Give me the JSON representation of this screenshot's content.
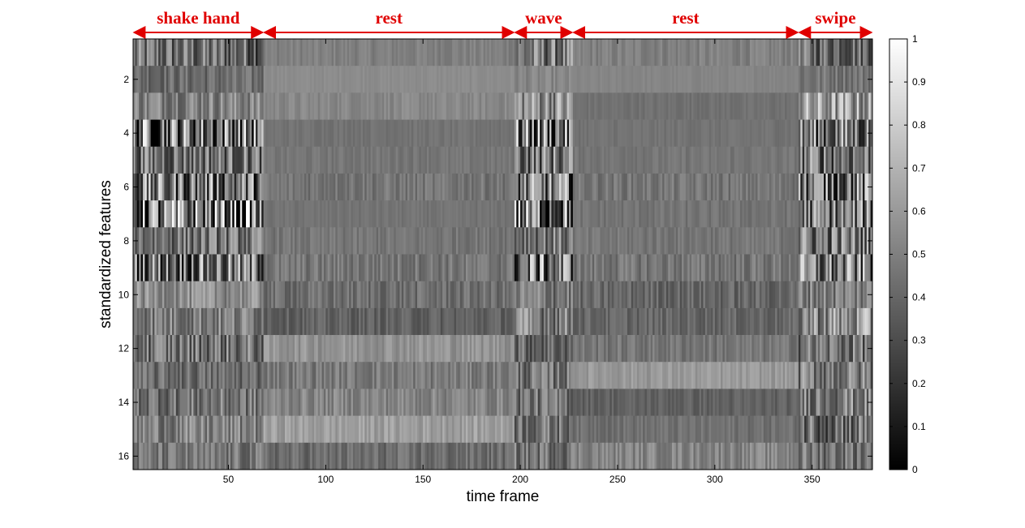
{
  "chart_data": {
    "type": "heatmap",
    "xlabel": "time frame",
    "ylabel": "standardized features",
    "xlim": [
      1,
      381
    ],
    "ylim": [
      0.5,
      16.5
    ],
    "x_ticks": [
      50,
      100,
      150,
      200,
      250,
      300,
      350
    ],
    "y_ticks": [
      2,
      4,
      6,
      8,
      10,
      12,
      14,
      16
    ],
    "colormap": "gray",
    "colorbar": {
      "min": 0,
      "max": 1,
      "ticks": [
        0,
        0.1,
        0.2,
        0.3,
        0.4,
        0.5,
        0.6,
        0.7,
        0.8,
        0.9,
        1
      ]
    },
    "grid": false,
    "segments": [
      {
        "label": "shake hand",
        "start": 1,
        "end": 68
      },
      {
        "label": "rest",
        "start": 68,
        "end": 197
      },
      {
        "label": "wave",
        "start": 197,
        "end": 227
      },
      {
        "label": "rest",
        "start": 227,
        "end": 343
      },
      {
        "label": "swipe",
        "start": 343,
        "end": 381
      }
    ],
    "rows": [
      {
        "feature": 1,
        "levels": [
          0.42,
          0.5,
          0.45,
          0.5,
          0.42
        ],
        "variation": [
          0.3,
          0.05,
          0.3,
          0.06,
          0.25
        ]
      },
      {
        "feature": 2,
        "levels": [
          0.42,
          0.55,
          0.52,
          0.52,
          0.46
        ],
        "variation": [
          0.12,
          0.02,
          0.06,
          0.02,
          0.1
        ]
      },
      {
        "feature": 3,
        "levels": [
          0.52,
          0.53,
          0.58,
          0.44,
          0.6
        ],
        "variation": [
          0.18,
          0.05,
          0.28,
          0.03,
          0.3
        ]
      },
      {
        "feature": 4,
        "levels": [
          0.45,
          0.45,
          0.45,
          0.45,
          0.45
        ],
        "variation": [
          0.55,
          0.03,
          0.55,
          0.03,
          0.45
        ]
      },
      {
        "feature": 5,
        "levels": [
          0.45,
          0.46,
          0.46,
          0.46,
          0.46
        ],
        "variation": [
          0.3,
          0.04,
          0.35,
          0.04,
          0.35
        ]
      },
      {
        "feature": 6,
        "levels": [
          0.45,
          0.46,
          0.45,
          0.46,
          0.46
        ],
        "variation": [
          0.45,
          0.08,
          0.45,
          0.08,
          0.45
        ]
      },
      {
        "feature": 7,
        "levels": [
          0.44,
          0.45,
          0.44,
          0.45,
          0.45
        ],
        "variation": [
          0.6,
          0.03,
          0.6,
          0.05,
          0.4
        ]
      },
      {
        "feature": 8,
        "levels": [
          0.45,
          0.46,
          0.46,
          0.46,
          0.46
        ],
        "variation": [
          0.25,
          0.06,
          0.25,
          0.06,
          0.35
        ]
      },
      {
        "feature": 9,
        "levels": [
          0.45,
          0.46,
          0.45,
          0.46,
          0.45
        ],
        "variation": [
          0.45,
          0.1,
          0.5,
          0.1,
          0.45
        ]
      },
      {
        "feature": 10,
        "levels": [
          0.55,
          0.43,
          0.48,
          0.4,
          0.5
        ],
        "variation": [
          0.15,
          0.1,
          0.2,
          0.1,
          0.2
        ]
      },
      {
        "feature": 11,
        "levels": [
          0.5,
          0.38,
          0.5,
          0.4,
          0.55
        ],
        "variation": [
          0.2,
          0.08,
          0.25,
          0.08,
          0.3
        ]
      },
      {
        "feature": 12,
        "levels": [
          0.45,
          0.58,
          0.4,
          0.46,
          0.45
        ],
        "variation": [
          0.25,
          0.08,
          0.2,
          0.08,
          0.25
        ]
      },
      {
        "feature": 13,
        "levels": [
          0.42,
          0.48,
          0.45,
          0.6,
          0.48
        ],
        "variation": [
          0.15,
          0.1,
          0.2,
          0.06,
          0.25
        ]
      },
      {
        "feature": 14,
        "levels": [
          0.45,
          0.52,
          0.45,
          0.38,
          0.5
        ],
        "variation": [
          0.2,
          0.1,
          0.2,
          0.06,
          0.25
        ]
      },
      {
        "feature": 15,
        "levels": [
          0.5,
          0.62,
          0.45,
          0.44,
          0.45
        ],
        "variation": [
          0.18,
          0.08,
          0.2,
          0.06,
          0.3
        ]
      },
      {
        "feature": 16,
        "levels": [
          0.45,
          0.42,
          0.46,
          0.52,
          0.46
        ],
        "variation": [
          0.15,
          0.1,
          0.18,
          0.1,
          0.2
        ]
      }
    ]
  }
}
